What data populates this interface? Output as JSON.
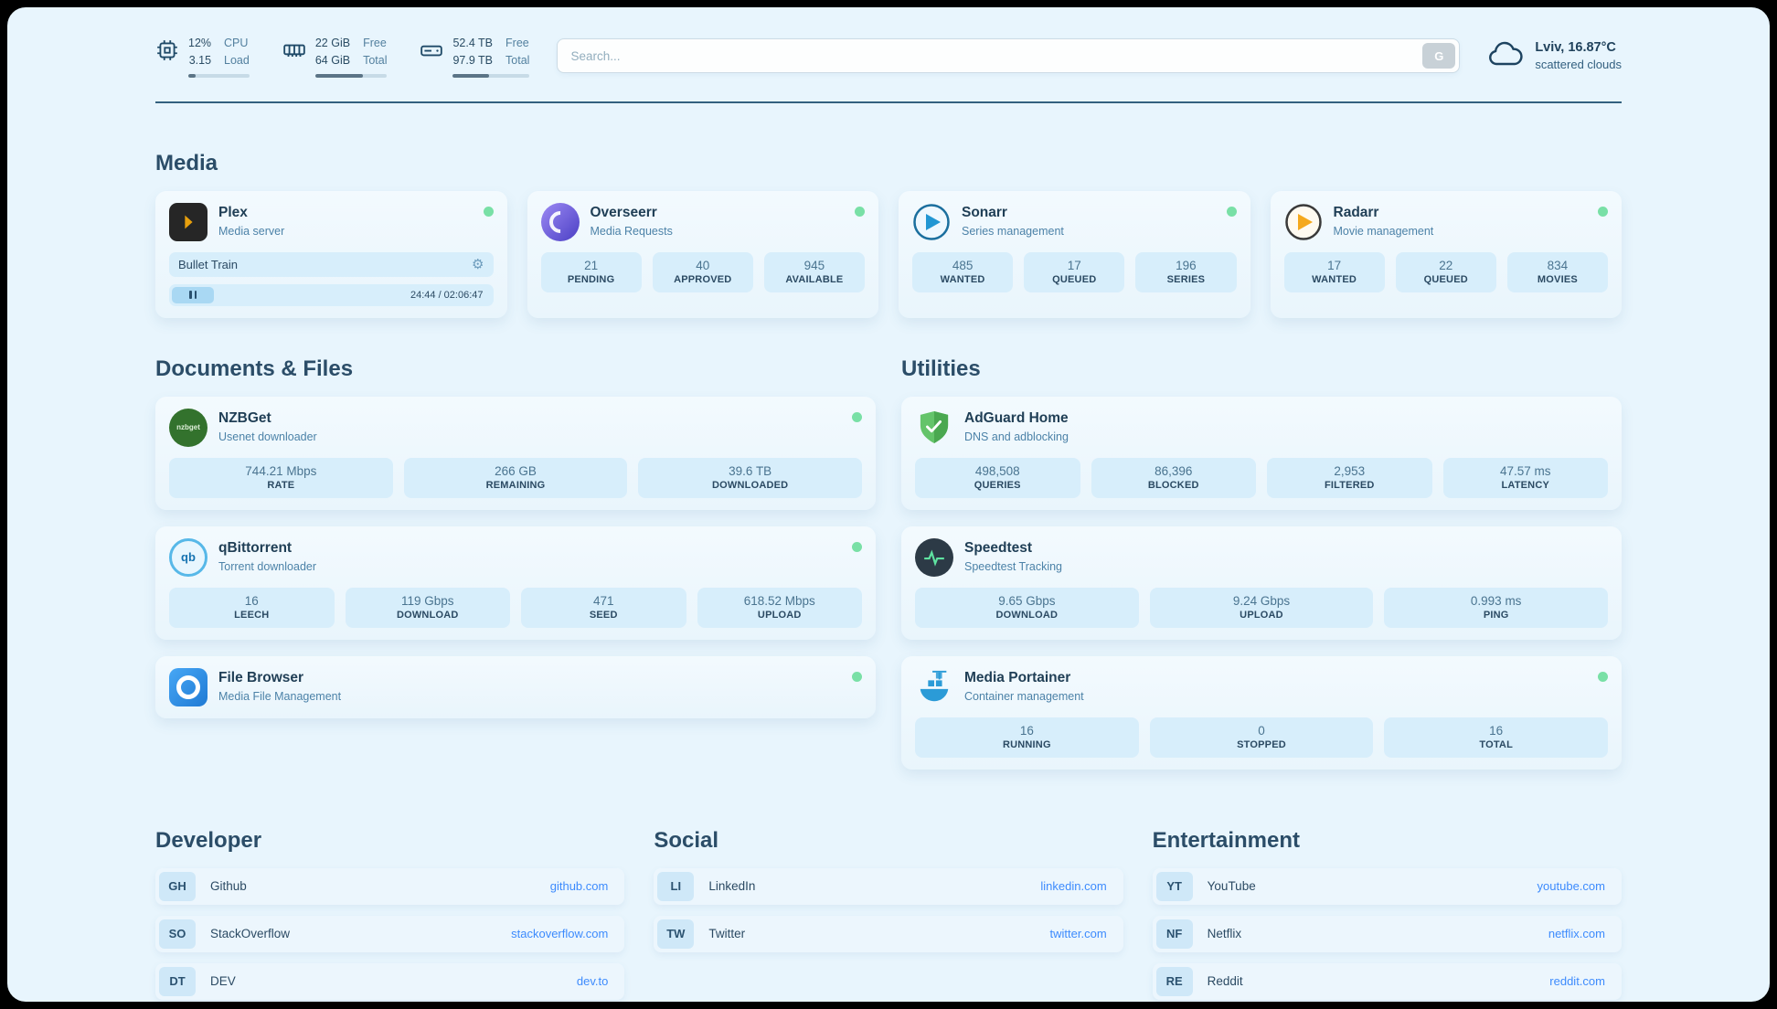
{
  "topbar": {
    "cpu": {
      "values": [
        "12%",
        "3.15"
      ],
      "labels": [
        "CPU",
        "Load"
      ],
      "percent": 12
    },
    "ram": {
      "values": [
        "22 GiB",
        "64 GiB"
      ],
      "labels": [
        "Free",
        "Total"
      ],
      "percent": 66
    },
    "disk": {
      "values": [
        "52.4 TB",
        "97.9 TB"
      ],
      "labels": [
        "Free",
        "Total"
      ],
      "percent": 47
    },
    "search": {
      "placeholder": "Search...",
      "button_label": "G"
    },
    "weather": {
      "location": "Lviv, 16.87°C",
      "condition": "scattered clouds"
    }
  },
  "sections": {
    "media": {
      "heading": "Media",
      "cards": [
        {
          "title": "Plex",
          "subtitle": "Media server",
          "player": {
            "track": "Bullet Train",
            "time": "24:44 / 02:06:47"
          }
        },
        {
          "title": "Overseerr",
          "subtitle": "Media Requests",
          "stats": [
            {
              "value": "21",
              "label": "PENDING"
            },
            {
              "value": "40",
              "label": "APPROVED"
            },
            {
              "value": "945",
              "label": "AVAILABLE"
            }
          ]
        },
        {
          "title": "Sonarr",
          "subtitle": "Series management",
          "stats": [
            {
              "value": "485",
              "label": "WANTED"
            },
            {
              "value": "17",
              "label": "QUEUED"
            },
            {
              "value": "196",
              "label": "SERIES"
            }
          ]
        },
        {
          "title": "Radarr",
          "subtitle": "Movie management",
          "stats": [
            {
              "value": "17",
              "label": "WANTED"
            },
            {
              "value": "22",
              "label": "QUEUED"
            },
            {
              "value": "834",
              "label": "MOVIES"
            }
          ]
        }
      ]
    },
    "documents": {
      "heading": "Documents & Files",
      "cards": [
        {
          "title": "NZBGet",
          "subtitle": "Usenet downloader",
          "icon_text": "nzbget",
          "stats": [
            {
              "value": "744.21 Mbps",
              "label": "RATE"
            },
            {
              "value": "266 GB",
              "label": "REMAINING"
            },
            {
              "value": "39.6 TB",
              "label": "DOWNLOADED"
            }
          ]
        },
        {
          "title": "qBittorrent",
          "subtitle": "Torrent downloader",
          "icon_text": "qb",
          "stats": [
            {
              "value": "16",
              "label": "LEECH"
            },
            {
              "value": "119 Gbps",
              "label": "DOWNLOAD"
            },
            {
              "value": "471",
              "label": "SEED"
            },
            {
              "value": "618.52 Mbps",
              "label": "UPLOAD"
            }
          ]
        },
        {
          "title": "File Browser",
          "subtitle": "Media File Management"
        }
      ]
    },
    "utilities": {
      "heading": "Utilities",
      "cards": [
        {
          "title": "AdGuard Home",
          "subtitle": "DNS and adblocking",
          "stats": [
            {
              "value": "498,508",
              "label": "QUERIES"
            },
            {
              "value": "86,396",
              "label": "BLOCKED"
            },
            {
              "value": "2,953",
              "label": "FILTERED"
            },
            {
              "value": "47.57 ms",
              "label": "LATENCY"
            }
          ]
        },
        {
          "title": "Speedtest",
          "subtitle": "Speedtest Tracking",
          "stats": [
            {
              "value": "9.65 Gbps",
              "label": "DOWNLOAD"
            },
            {
              "value": "9.24 Gbps",
              "label": "UPLOAD"
            },
            {
              "value": "0.993 ms",
              "label": "PING"
            }
          ]
        },
        {
          "title": "Media Portainer",
          "subtitle": "Container management",
          "stats": [
            {
              "value": "16",
              "label": "RUNNING"
            },
            {
              "value": "0",
              "label": "STOPPED"
            },
            {
              "value": "16",
              "label": "TOTAL"
            }
          ]
        }
      ]
    },
    "bookmarks": [
      {
        "heading": "Developer",
        "links": [
          {
            "abbr": "GH",
            "name": "Github",
            "url": "github.com"
          },
          {
            "abbr": "SO",
            "name": "StackOverflow",
            "url": "stackoverflow.com"
          },
          {
            "abbr": "DT",
            "name": "DEV",
            "url": "dev.to"
          }
        ]
      },
      {
        "heading": "Social",
        "links": [
          {
            "abbr": "LI",
            "name": "LinkedIn",
            "url": "linkedin.com"
          },
          {
            "abbr": "TW",
            "name": "Twitter",
            "url": "twitter.com"
          }
        ]
      },
      {
        "heading": "Entertainment",
        "links": [
          {
            "abbr": "YT",
            "name": "YouTube",
            "url": "youtube.com"
          },
          {
            "abbr": "NF",
            "name": "Netflix",
            "url": "netflix.com"
          },
          {
            "abbr": "RE",
            "name": "Reddit",
            "url": "reddit.com"
          }
        ]
      }
    ]
  }
}
